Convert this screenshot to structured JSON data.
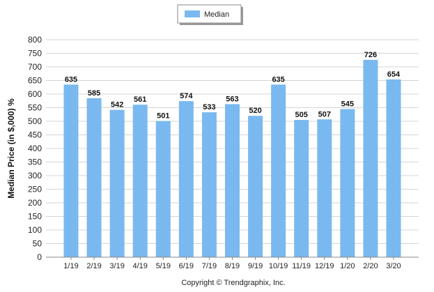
{
  "chart_data": {
    "type": "bar",
    "categories": [
      "1/19",
      "2/19",
      "3/19",
      "4/19",
      "5/19",
      "6/19",
      "7/19",
      "8/19",
      "9/19",
      "10/19",
      "11/19",
      "12/19",
      "1/20",
      "2/20",
      "3/20"
    ],
    "series": [
      {
        "name": "Median",
        "values": [
          635,
          585,
          542,
          561,
          501,
          574,
          533,
          563,
          520,
          635,
          505,
          507,
          545,
          726,
          654
        ],
        "color": "#7ab9f0"
      }
    ],
    "ylabel": "Median Price (in $,000) %",
    "xlabel": "",
    "ylim": [
      0,
      800
    ],
    "ytick_step": 50,
    "grid": true,
    "legend_position": "top-center",
    "data_labels": true
  },
  "footer": {
    "copyright": "Copyright © Trendgraphix, Inc."
  },
  "colors": {
    "bar": "#7ab9f0",
    "grid": "#d4d4d4",
    "axis": "#888888"
  }
}
